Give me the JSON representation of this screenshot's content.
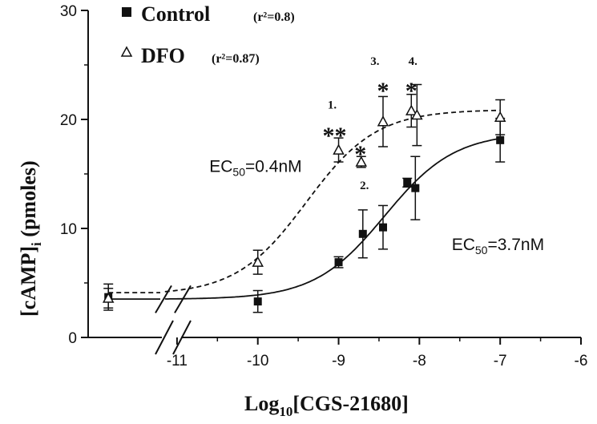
{
  "chart_data": {
    "type": "scatter",
    "xlabel_main": "Log",
    "xlabel_sub": "10",
    "xlabel_rest": "[CGS-21680]",
    "ylabel_main": "[cAMP]",
    "ylabel_sub": "i",
    "ylabel_rest": " (pmoles)",
    "x_ticks": [
      -11,
      -10,
      -9,
      -8,
      -7,
      -6
    ],
    "x_tick_labels": [
      "-11",
      "-10",
      "-9",
      "-8",
      "-7",
      "-6"
    ],
    "y_ticks": [
      0,
      10,
      20,
      30
    ],
    "y_tick_labels": [
      "0",
      "10",
      "20",
      "30"
    ],
    "xlim": [
      -12.1,
      -6
    ],
    "ylim": [
      0,
      30
    ],
    "axis_break": true,
    "legend_position": "top-left",
    "series": [
      {
        "name": "Control",
        "r2_label": "(r²=0.8)",
        "marker": "filled-square",
        "line_style": "solid",
        "ec50_value": -8.43,
        "bottom": 3.5,
        "top": 18.8,
        "x": [
          -11.85,
          -10,
          -9,
          -8.7,
          -8.45,
          -8.15,
          -8.05,
          -7
        ],
        "y": [
          3.7,
          3.3,
          6.9,
          9.5,
          10.1,
          14.2,
          13.7,
          18.1
        ],
        "err": [
          1.2,
          1.0,
          0.5,
          2.2,
          2.0,
          0.4,
          2.9,
          2.0
        ]
      },
      {
        "name": "DFO",
        "r2_label": "(r²=0.87)",
        "marker": "open-triangle",
        "line_style": "dashed",
        "ec50_value": -9.4,
        "bottom": 3.9,
        "top": 20.9,
        "x": [
          -11.85,
          -10,
          -9,
          -8.72,
          -8.45,
          -8.1,
          -8.03,
          -7
        ],
        "y": [
          3.6,
          6.9,
          17.2,
          16.1,
          19.8,
          20.8,
          20.4,
          20.2
        ],
        "err": [
          0.9,
          1.1,
          1.1,
          0.5,
          2.3,
          1.5,
          2.8,
          1.6
        ]
      }
    ],
    "annotations": [
      {
        "text": "EC",
        "sub": "50",
        "rest": "=0.4nM",
        "x": -10.6,
        "y": 15.2
      },
      {
        "text": "EC",
        "sub": "50",
        "rest": "=3.7nM",
        "x": -7.6,
        "y": 8.0
      },
      {
        "text": "1.",
        "x": -9.08,
        "y": 21.0
      },
      {
        "text": "**",
        "x": -9.05,
        "y": 17.8
      },
      {
        "text": "*",
        "x": -8.73,
        "y": 16.1
      },
      {
        "text": "2.",
        "x": -8.68,
        "y": 13.6
      },
      {
        "text": "3.",
        "x": -8.55,
        "y": 25.0
      },
      {
        "text": "*",
        "x": -8.45,
        "y": 21.9
      },
      {
        "text": "4.",
        "x": -8.08,
        "y": 25.0
      },
      {
        "text": "*",
        "x": -8.1,
        "y": 21.9
      }
    ]
  }
}
